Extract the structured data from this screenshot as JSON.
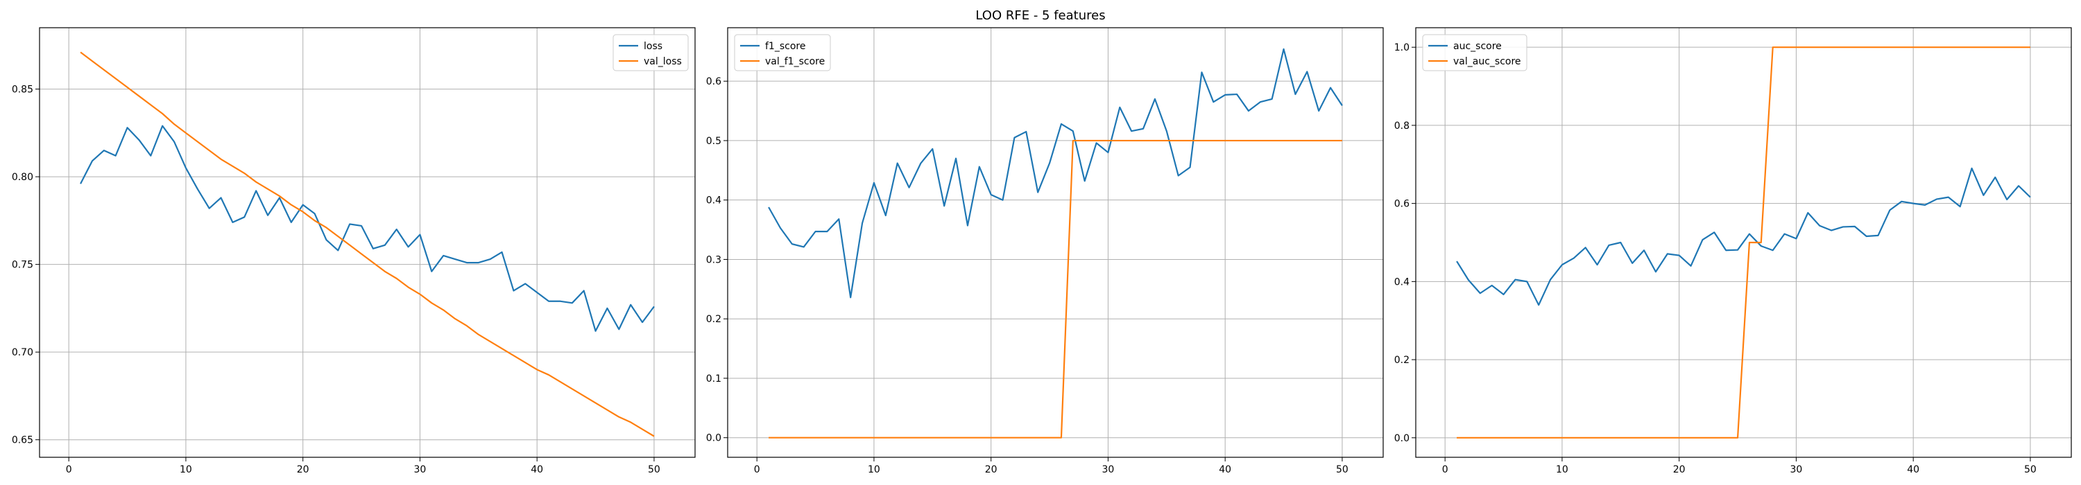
{
  "figure": {
    "title": "LOO RFE - 5 features"
  },
  "chart_data": [
    {
      "type": "line",
      "title": "",
      "xlabel": "",
      "ylabel": "",
      "xlim": [
        -2.5,
        53.5
      ],
      "ylim": [
        0.64,
        0.885
      ],
      "xticks": [
        0,
        10,
        20,
        30,
        40,
        50
      ],
      "yticks": [
        0.65,
        0.7,
        0.75,
        0.8,
        0.85
      ],
      "ytick_labels": [
        "0.65",
        "0.70",
        "0.75",
        "0.80",
        "0.85"
      ],
      "grid": true,
      "legend": "top-right",
      "x": [
        1,
        2,
        3,
        4,
        5,
        6,
        7,
        8,
        9,
        10,
        11,
        12,
        13,
        14,
        15,
        16,
        17,
        18,
        19,
        20,
        21,
        22,
        23,
        24,
        25,
        26,
        27,
        28,
        29,
        30,
        31,
        32,
        33,
        34,
        35,
        36,
        37,
        38,
        39,
        40,
        41,
        42,
        43,
        44,
        45,
        46,
        47,
        48,
        49,
        50
      ],
      "series": [
        {
          "name": "loss",
          "color": "#1f77b4",
          "values": [
            0.796,
            0.809,
            0.815,
            0.812,
            0.828,
            0.821,
            0.812,
            0.829,
            0.82,
            0.805,
            0.793,
            0.782,
            0.788,
            0.774,
            0.777,
            0.792,
            0.778,
            0.788,
            0.774,
            0.784,
            0.779,
            0.764,
            0.758,
            0.773,
            0.772,
            0.759,
            0.761,
            0.77,
            0.76,
            0.767,
            0.746,
            0.755,
            0.753,
            0.751,
            0.751,
            0.753,
            0.757,
            0.735,
            0.739,
            0.734,
            0.729,
            0.729,
            0.728,
            0.735,
            0.712,
            0.725,
            0.713,
            0.727,
            0.717,
            0.726
          ]
        },
        {
          "name": "val_loss",
          "color": "#ff7f0e",
          "values": [
            0.871,
            0.866,
            0.861,
            0.856,
            0.851,
            0.846,
            0.841,
            0.836,
            0.83,
            0.825,
            0.82,
            0.815,
            0.81,
            0.806,
            0.802,
            0.797,
            0.793,
            0.789,
            0.784,
            0.78,
            0.775,
            0.771,
            0.766,
            0.761,
            0.756,
            0.751,
            0.746,
            0.742,
            0.737,
            0.733,
            0.728,
            0.724,
            0.719,
            0.715,
            0.71,
            0.706,
            0.702,
            0.698,
            0.694,
            0.69,
            0.687,
            0.683,
            0.679,
            0.675,
            0.671,
            0.667,
            0.663,
            0.66,
            0.656,
            0.652
          ]
        }
      ]
    },
    {
      "type": "line",
      "title": "",
      "xlabel": "",
      "ylabel": "",
      "xlim": [
        -2.5,
        53.5
      ],
      "ylim": [
        -0.033,
        0.69
      ],
      "xticks": [
        0,
        10,
        20,
        30,
        40,
        50
      ],
      "yticks": [
        0.0,
        0.1,
        0.2,
        0.3,
        0.4,
        0.5,
        0.6
      ],
      "ytick_labels": [
        "0.0",
        "0.1",
        "0.2",
        "0.3",
        "0.4",
        "0.5",
        "0.6"
      ],
      "grid": true,
      "legend": "top-left",
      "x": [
        1,
        2,
        3,
        4,
        5,
        6,
        7,
        8,
        9,
        10,
        11,
        12,
        13,
        14,
        15,
        16,
        17,
        18,
        19,
        20,
        21,
        22,
        23,
        24,
        25,
        26,
        27,
        28,
        29,
        30,
        31,
        32,
        33,
        34,
        35,
        36,
        37,
        38,
        39,
        40,
        41,
        42,
        43,
        44,
        45,
        46,
        47,
        48,
        49,
        50
      ],
      "series": [
        {
          "name": "f1_score",
          "color": "#1f77b4",
          "values": [
            0.388,
            0.353,
            0.326,
            0.321,
            0.347,
            0.347,
            0.368,
            0.236,
            0.361,
            0.429,
            0.374,
            0.462,
            0.421,
            0.462,
            0.486,
            0.39,
            0.47,
            0.357,
            0.456,
            0.409,
            0.4,
            0.505,
            0.515,
            0.413,
            0.462,
            0.528,
            0.516,
            0.432,
            0.496,
            0.48,
            0.556,
            0.516,
            0.52,
            0.57,
            0.516,
            0.441,
            0.455,
            0.615,
            0.565,
            0.577,
            0.578,
            0.55,
            0.565,
            0.57,
            0.654,
            0.578,
            0.616,
            0.55,
            0.589,
            0.559
          ]
        },
        {
          "name": "val_f1_score",
          "color": "#ff7f0e",
          "values": [
            0,
            0,
            0,
            0,
            0,
            0,
            0,
            0,
            0,
            0,
            0,
            0,
            0,
            0,
            0,
            0,
            0,
            0,
            0,
            0,
            0,
            0,
            0,
            0,
            0,
            0,
            0.5,
            0.5,
            0.5,
            0.5,
            0.5,
            0.5,
            0.5,
            0.5,
            0.5,
            0.5,
            0.5,
            0.5,
            0.5,
            0.5,
            0.5,
            0.5,
            0.5,
            0.5,
            0.5,
            0.5,
            0.5,
            0.5,
            0.5,
            0.5
          ]
        }
      ]
    },
    {
      "type": "line",
      "title": "",
      "xlabel": "",
      "ylabel": "",
      "xlim": [
        -2.5,
        53.5
      ],
      "ylim": [
        -0.05,
        1.05
      ],
      "xticks": [
        0,
        10,
        20,
        30,
        40,
        50
      ],
      "yticks": [
        0.0,
        0.2,
        0.4,
        0.6,
        0.8,
        1.0
      ],
      "ytick_labels": [
        "0.0",
        "0.2",
        "0.4",
        "0.6",
        "0.8",
        "1.0"
      ],
      "grid": true,
      "legend": "top-left",
      "x": [
        1,
        2,
        3,
        4,
        5,
        6,
        7,
        8,
        9,
        10,
        11,
        12,
        13,
        14,
        15,
        16,
        17,
        18,
        19,
        20,
        21,
        22,
        23,
        24,
        25,
        26,
        27,
        28,
        29,
        30,
        31,
        32,
        33,
        34,
        35,
        36,
        37,
        38,
        39,
        40,
        41,
        42,
        43,
        44,
        45,
        46,
        47,
        48,
        49,
        50
      ],
      "series": [
        {
          "name": "auc_score",
          "color": "#1f77b4",
          "values": [
            0.452,
            0.404,
            0.37,
            0.39,
            0.367,
            0.405,
            0.4,
            0.34,
            0.405,
            0.443,
            0.46,
            0.487,
            0.443,
            0.493,
            0.5,
            0.447,
            0.48,
            0.425,
            0.471,
            0.467,
            0.44,
            0.507,
            0.526,
            0.48,
            0.481,
            0.522,
            0.491,
            0.48,
            0.522,
            0.51,
            0.576,
            0.543,
            0.531,
            0.54,
            0.541,
            0.516,
            0.518,
            0.583,
            0.605,
            0.6,
            0.596,
            0.611,
            0.616,
            0.592,
            0.69,
            0.621,
            0.667,
            0.61,
            0.645,
            0.616
          ]
        },
        {
          "name": "val_auc_score",
          "color": "#ff7f0e",
          "values": [
            0,
            0,
            0,
            0,
            0,
            0,
            0,
            0,
            0,
            0,
            0,
            0,
            0,
            0,
            0,
            0,
            0,
            0,
            0,
            0,
            0,
            0,
            0,
            0,
            0,
            0.5,
            0.5,
            1,
            1,
            1,
            1,
            1,
            1,
            1,
            1,
            1,
            1,
            1,
            1,
            1,
            1,
            1,
            1,
            1,
            1,
            1,
            1,
            1,
            1,
            1
          ]
        }
      ]
    }
  ]
}
